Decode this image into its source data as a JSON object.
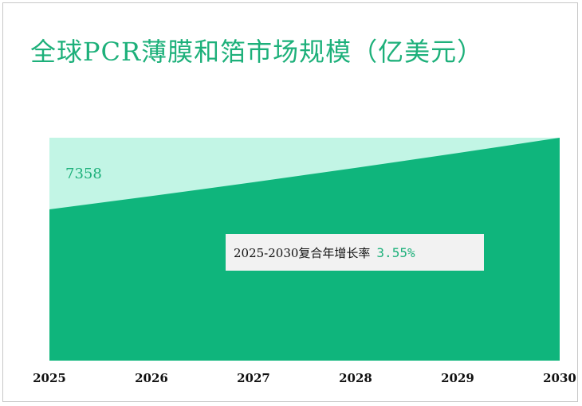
{
  "title": "全球PCR薄膜和箔市场规模（亿美元）",
  "cagr": {
    "label": "2025-2030复合年增长率",
    "value": "3.55%"
  },
  "colors": {
    "title": "#1db07a",
    "area": "#0fb57c",
    "area_background": "#c2f5e5",
    "cagr_box": "#f2f2f2"
  },
  "chart_data": {
    "type": "area",
    "x": [
      "2025",
      "2026",
      "2027",
      "2028",
      "2029",
      "2030"
    ],
    "values": [
      7358,
      7619,
      7890,
      8170,
      8460,
      8761
    ],
    "first_point_label": "7358",
    "grid": false,
    "legend": "none"
  }
}
